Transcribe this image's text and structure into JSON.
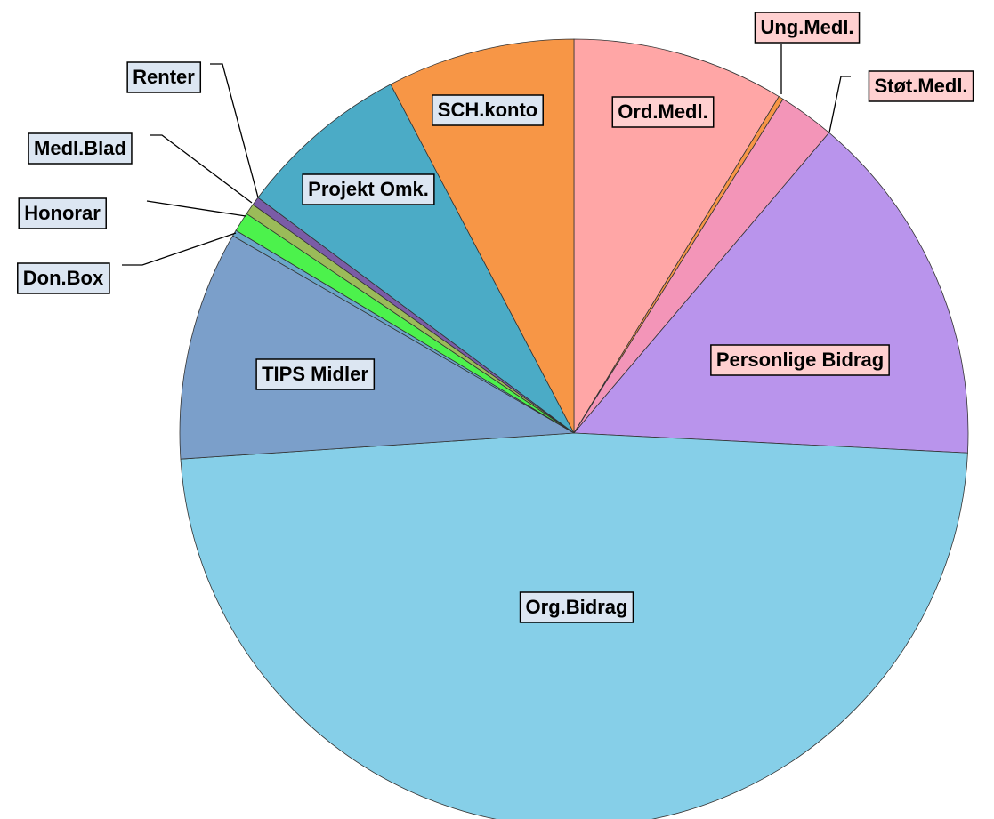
{
  "chart_data": {
    "type": "pie",
    "categories": [
      "Ord.Medl.",
      "Ung.Medl.",
      "Støt.Medl.",
      "Personlige Bidrag",
      "Org.Bidrag",
      "TIPS Midler",
      "Don.Box",
      "Honorar",
      "Medl.Blad",
      "Renter",
      "Projekt Omk.",
      "SCH.konto"
    ],
    "values": [
      8.7,
      0.2,
      2.3,
      14.6,
      48.15,
      9.4,
      0.25,
      0.8,
      0.45,
      0.35,
      7.1,
      7.7
    ],
    "colors": [
      "#ffa6a6",
      "#f79646",
      "#f395b8",
      "#b994ec",
      "#86cfe8",
      "#7b9fca",
      "#6aa6c9",
      "#4cf24c",
      "#9bbb59",
      "#7a5ca6",
      "#4babc6",
      "#f79646"
    ]
  }
}
